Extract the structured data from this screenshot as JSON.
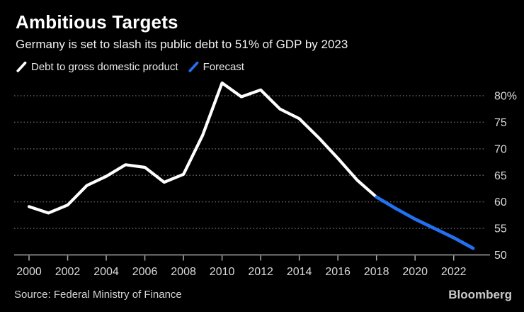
{
  "header": {
    "title": "Ambitious Targets",
    "subtitle": "Germany is set to slash its public debt to 51% of GDP by 2023"
  },
  "legend": [
    {
      "label": "Debt to gross domestic product",
      "color_key": "history"
    },
    {
      "label": "Forecast",
      "color_key": "forecast"
    }
  ],
  "chart_data": {
    "type": "line",
    "title": "Ambitious Targets",
    "subtitle": "Germany is set to slash its public debt to 51% of GDP by 2023",
    "unit": "% of GDP",
    "ylim": [
      50,
      83
    ],
    "grid": "dotted-horizontal",
    "legend_position": "top-left",
    "y_axis": {
      "side": "right",
      "ticks": [
        {
          "value": 80,
          "label": "80%"
        },
        {
          "value": 75,
          "label": "75"
        },
        {
          "value": 70,
          "label": "70"
        },
        {
          "value": 65,
          "label": "65"
        },
        {
          "value": 60,
          "label": "60"
        },
        {
          "value": 55,
          "label": "55"
        },
        {
          "value": 50,
          "label": "50"
        }
      ]
    },
    "x_axis": {
      "ticks": [
        2000,
        2002,
        2004,
        2006,
        2008,
        2010,
        2012,
        2014,
        2016,
        2018,
        2020,
        2022
      ]
    },
    "series": [
      {
        "name": "Debt to gross domestic product",
        "color_key": "history",
        "years": [
          2000,
          2001,
          2002,
          2003,
          2004,
          2005,
          2006,
          2007,
          2008,
          2009,
          2010,
          2011,
          2012,
          2013,
          2014,
          2015,
          2016,
          2017,
          2018
        ],
        "values": [
          59.1,
          57.9,
          59.4,
          63.1,
          64.8,
          67.0,
          66.5,
          63.7,
          65.2,
          72.6,
          82.4,
          79.8,
          81.1,
          77.5,
          75.7,
          72.1,
          68.2,
          64.1,
          60.9
        ]
      },
      {
        "name": "Forecast",
        "color_key": "forecast",
        "years": [
          2018,
          2019,
          2020,
          2021,
          2022,
          2023
        ],
        "values": [
          60.9,
          58.75,
          56.75,
          55.0,
          53.25,
          51.25
        ]
      }
    ]
  },
  "colors": {
    "background": "#000000",
    "history": "#ffffff",
    "forecast": "#2271f2",
    "grid": "#5c5c5c",
    "axis": "#a9a9a9",
    "tick_label": "#d9d9d9"
  },
  "footer": {
    "source": "Source: Federal Ministry of Finance",
    "brand": "Bloomberg"
  }
}
